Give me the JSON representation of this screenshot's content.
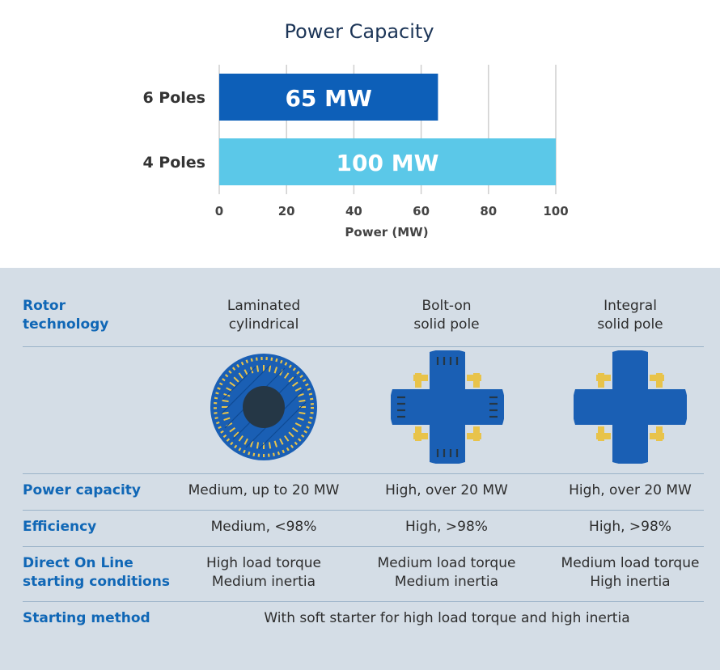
{
  "chart_data": {
    "type": "bar",
    "orientation": "horizontal",
    "title": "Power Capacity",
    "categories": [
      "6 Poles",
      "4 Poles"
    ],
    "values": [
      65,
      100
    ],
    "data_labels": [
      "65 MW",
      "100 MW"
    ],
    "colors": [
      "#0d5fb8",
      "#5bc8e8"
    ],
    "xlabel": "Power (MW)",
    "ylabel": "",
    "xlim": [
      0,
      100
    ],
    "xticks": [
      0,
      20,
      40,
      60,
      80,
      100
    ],
    "grid": true
  },
  "table": {
    "rows": [
      {
        "label": "Rotor\ntechnology",
        "cells": [
          "Laminated\ncylindrical",
          "Bolt-on\nsolid pole",
          "Integral\nsolid pole"
        ]
      },
      {
        "label": "Power capacity",
        "cells": [
          "Medium, up to 20 MW",
          "High, over 20 MW",
          "High, over 20 MW"
        ]
      },
      {
        "label": "Efficiency",
        "cells": [
          "Medium, <98%",
          "High, >98%",
          "High, >98%"
        ]
      },
      {
        "label": "Direct On Line\nstarting conditions",
        "cells": [
          "High load torque\nMedium inertia",
          "Medium load torque\nMedium inertia",
          "Medium load torque\nHigh inertia"
        ]
      },
      {
        "label": "Starting method",
        "span_text": "With soft starter for high load torque and high inertia"
      }
    ],
    "rotor_images": [
      "laminated-cylindrical-rotor",
      "bolt-on-solid-pole-rotor",
      "integral-solid-pole-rotor"
    ],
    "colors": {
      "label": "#1067b6",
      "rotor_blue": "#1a5fb4",
      "rotor_core": "#253746",
      "coil_gold": "#e8c34a"
    }
  }
}
